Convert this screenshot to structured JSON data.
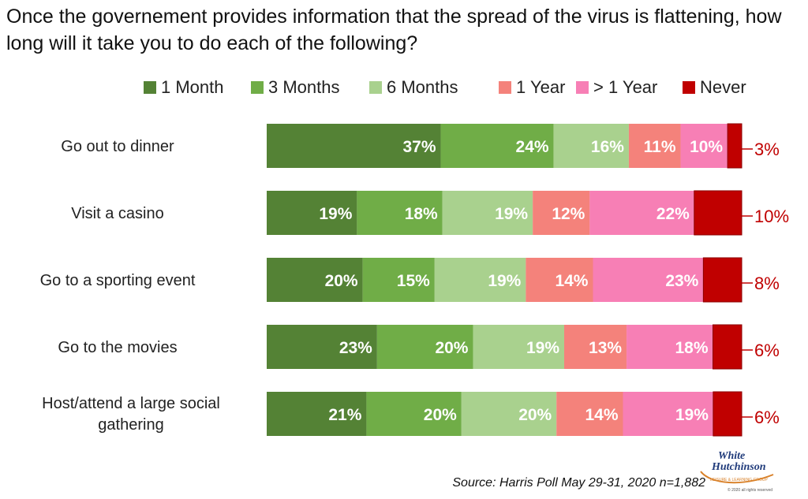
{
  "title": "Once the governement provides information that the spread of the virus is flattening, how long will it take you to do each of the following?",
  "source": "Source: Harris Poll May 29-31, 2020 n=1,882",
  "logo": {
    "line1": "White",
    "line2": "Hutchinson",
    "tagline": "LEISURE & LEARNING GROUP",
    "copyright": "© 2020 all rights reserved"
  },
  "colors": {
    "1 Month": "#548235",
    "3 Months": "#70AD47",
    "6 Months": "#A9D18E",
    "1 Year": "#F4827B",
    "> 1 Year": "#F77FB5",
    "Never": "#C00000"
  },
  "chart_data": {
    "type": "bar",
    "orientation": "horizontal",
    "stacked": true,
    "legend_position": "top",
    "categories": [
      "Go out to dinner",
      "Visit a casino",
      "Go to a sporting event",
      "Go to the movies",
      "Host/attend a large social gathering"
    ],
    "series": [
      {
        "name": "1 Month",
        "values": [
          37,
          19,
          20,
          23,
          21
        ]
      },
      {
        "name": "3 Months",
        "values": [
          24,
          18,
          15,
          20,
          20
        ]
      },
      {
        "name": "6 Months",
        "values": [
          16,
          19,
          19,
          19,
          20
        ]
      },
      {
        "name": "1 Year",
        "values": [
          11,
          12,
          14,
          13,
          14
        ]
      },
      {
        "name": "> 1 Year",
        "values": [
          10,
          22,
          23,
          18,
          19
        ]
      },
      {
        "name": "Never",
        "values": [
          3,
          10,
          8,
          6,
          6
        ]
      }
    ],
    "unit": "%"
  }
}
